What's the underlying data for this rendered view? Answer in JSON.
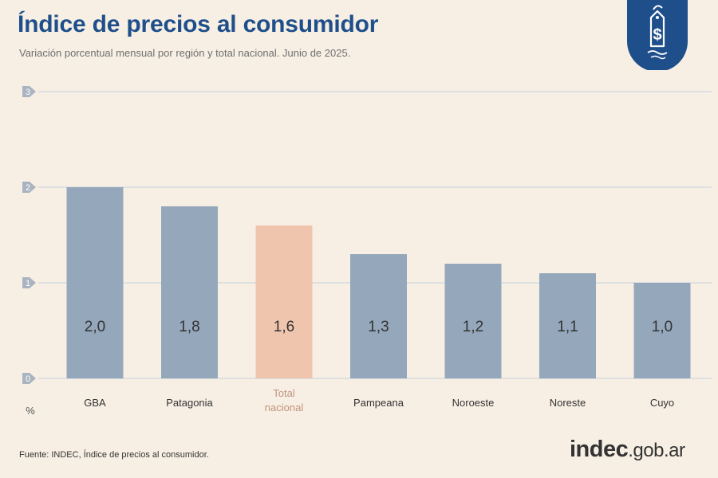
{
  "header": {
    "title": "Índice de precios al consumidor",
    "subtitle": "Variación porcentual mensual por región y total nacional. Junio de 2025."
  },
  "badge": {
    "icon": "price-tag-dollar-icon",
    "symbol": "$"
  },
  "chart_data": {
    "type": "bar",
    "categories": [
      "GBA",
      "Patagonia",
      "Total nacional",
      "Pampeana",
      "Noroeste",
      "Noreste",
      "Cuyo"
    ],
    "category_lines": [
      [
        "GBA"
      ],
      [
        "Patagonia"
      ],
      [
        "Total",
        "nacional"
      ],
      [
        "Pampeana"
      ],
      [
        "Noroeste"
      ],
      [
        "Noreste"
      ],
      [
        "Cuyo"
      ]
    ],
    "values": [
      2.0,
      1.8,
      1.6,
      1.3,
      1.2,
      1.1,
      1.0
    ],
    "value_labels": [
      "2,0",
      "1,8",
      "1,6",
      "1,3",
      "1,2",
      "1,1",
      "1,0"
    ],
    "highlight_index": 2,
    "ylim": [
      0,
      3
    ],
    "yticks": [
      "0",
      "1",
      "2",
      "3"
    ],
    "ylabel": "%",
    "xlabel": "",
    "grid": true,
    "colors": {
      "bar": "#94a7bb",
      "highlight": "#f0c5ae",
      "highlight_text": "#c0937d",
      "grid": "#cfd6dd",
      "tick_bg": "#a9b4c0",
      "label": "#333333"
    }
  },
  "footer": {
    "source": "Fuente: INDEC, Índice de precios al consumidor.",
    "brand_main": "indec",
    "brand_domain": ".gob.ar"
  }
}
